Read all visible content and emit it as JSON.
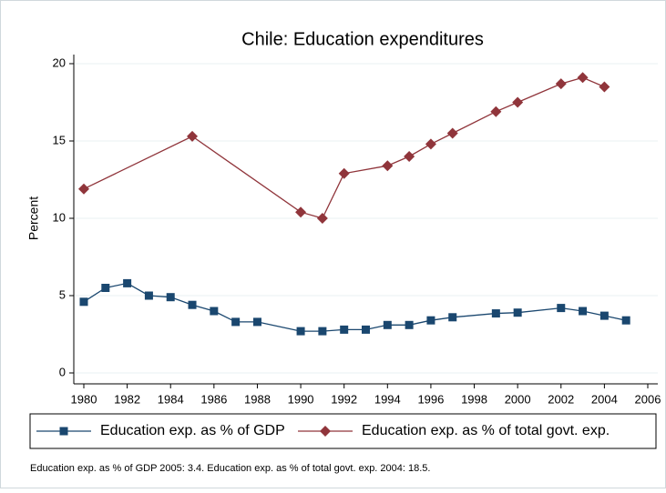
{
  "chart_data": {
    "type": "line",
    "title": "Chile: Education expenditures",
    "ylabel": "Percent",
    "xlim": [
      1980,
      2006
    ],
    "xticks": [
      1980,
      1982,
      1984,
      1986,
      1988,
      1990,
      1992,
      1994,
      1996,
      1998,
      2000,
      2002,
      2004,
      2006
    ],
    "ylim": [
      0,
      20
    ],
    "yticks": [
      0,
      5,
      10,
      15,
      20
    ],
    "grid": true,
    "series": [
      {
        "name": "Education exp. as % of GDP",
        "color": "#1a476f",
        "marker": "square",
        "x": [
          1980,
          1981,
          1982,
          1983,
          1984,
          1985,
          1986,
          1987,
          1988,
          1990,
          1991,
          1992,
          1993,
          1994,
          1995,
          1996,
          1997,
          1999,
          2000,
          2002,
          2003,
          2004,
          2005
        ],
        "values": [
          4.6,
          5.5,
          5.8,
          5.0,
          4.9,
          4.4,
          4.0,
          3.3,
          3.3,
          2.7,
          2.7,
          2.8,
          2.8,
          3.1,
          3.1,
          3.4,
          3.6,
          3.85,
          3.9,
          4.2,
          4.0,
          3.7,
          3.4
        ]
      },
      {
        "name": "Education exp. as % of total govt. exp.",
        "color": "#90353b",
        "marker": "diamond",
        "x": [
          1980,
          1985,
          1990,
          1991,
          1992,
          1994,
          1995,
          1996,
          1997,
          1999,
          2000,
          2002,
          2003,
          2004
        ],
        "values": [
          11.9,
          15.3,
          10.4,
          10.0,
          12.9,
          13.4,
          14.0,
          14.8,
          15.5,
          16.9,
          17.5,
          18.7,
          19.1,
          18.5
        ]
      }
    ],
    "note": "Education exp. as % of GDP 2005: 3.4. Education exp. as % of total govt. exp. 2004: 18.5."
  }
}
